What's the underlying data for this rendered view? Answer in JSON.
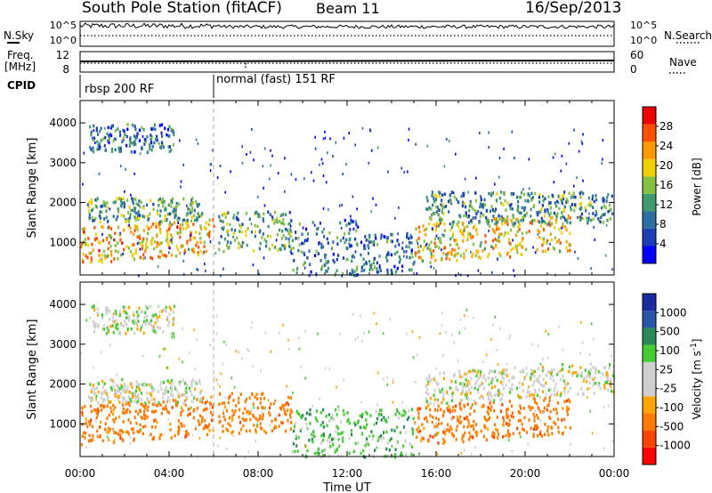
{
  "header": {
    "station": "South Pole Station (fitACF)",
    "beam": "Beam 11",
    "date": "16/Sep/2013"
  },
  "left_labels": {
    "nsky": "N.Sky",
    "freq_line1": "Freq.",
    "freq_line2": "[MHz]",
    "cpid": "CPID"
  },
  "right_labels": {
    "nsearch": "N.Search",
    "nave": "Nave"
  },
  "noise_panel": {
    "left_ticks": [
      "10^5",
      "10^0"
    ],
    "right_ticks": [
      "10^5",
      "10^0"
    ]
  },
  "freq_panel": {
    "left_ticks": [
      "12",
      "8"
    ],
    "right_ticks": [
      "60",
      "0"
    ]
  },
  "cpid_panel": {
    "segments": [
      {
        "label": "rbsp 200 RF",
        "start_hour": 0
      },
      {
        "label": "normal (fast) 151 RF",
        "start_hour": 6
      }
    ]
  },
  "x_axis": {
    "title": "Time UT",
    "ticks": [
      "00:00",
      "04:00",
      "08:00",
      "12:00",
      "16:00",
      "20:00",
      "00:00"
    ]
  },
  "chart_data": [
    {
      "type": "heatmap",
      "name": "power",
      "ylabel": "Slant Range [km]",
      "yticks": [
        "1000",
        "2000",
        "3000",
        "4000"
      ],
      "xlim_hours": [
        0,
        24
      ],
      "ylim_km": [
        180,
        4560
      ],
      "colorbar": {
        "label": "Power [dB]",
        "ticks": [
          "28",
          "24",
          "20",
          "16",
          "12",
          "8",
          "4"
        ],
        "colors": [
          "#0000ff",
          "#1c3fb8",
          "#2b6fa3",
          "#3e9b6e",
          "#86c040",
          "#f0d000",
          "#ff9a00",
          "#ff5000",
          "#ee0000"
        ]
      },
      "bands": [
        {
          "t0": 0.0,
          "t1": 6.0,
          "r0": 500,
          "r1": 1400,
          "level": 0.6
        },
        {
          "t0": 0.3,
          "t1": 5.5,
          "r0": 1550,
          "r1": 2150,
          "level": 0.3
        },
        {
          "t0": 0.4,
          "t1": 4.2,
          "r0": 3300,
          "r1": 4000,
          "level": 0.15
        },
        {
          "t0": 6.2,
          "t1": 9.5,
          "r0": 800,
          "r1": 1800,
          "level": 0.3
        },
        {
          "t0": 9.5,
          "t1": 12.5,
          "r0": 200,
          "r1": 1600,
          "level": 0.15
        },
        {
          "t0": 12.5,
          "t1": 15.0,
          "r0": 200,
          "r1": 1200,
          "level": 0.15
        },
        {
          "t0": 15.0,
          "t1": 22.0,
          "r0": 500,
          "r1": 1500,
          "level": 0.55
        },
        {
          "t0": 15.5,
          "t1": 24.0,
          "r0": 1500,
          "r1": 2300,
          "level": 0.25
        }
      ]
    },
    {
      "type": "heatmap",
      "name": "velocity",
      "ylabel": "Slant Range [km]",
      "yticks": [
        "1000",
        "2000",
        "3000",
        "4000"
      ],
      "xlim_hours": [
        0,
        24
      ],
      "ylim_km": [
        180,
        4560
      ],
      "colorbar": {
        "label": "Velocity [m s^-1]",
        "ticks": [
          "1000",
          "500",
          "100",
          "25",
          "-25",
          "-100",
          "-500",
          "-1000"
        ],
        "colors": [
          "#ff0000",
          "#ff4500",
          "#ff7a00",
          "#ffa500",
          "#cfcfcf",
          "#cfcfcf",
          "#44cc33",
          "#2a8a55",
          "#2a55a8",
          "#1a2aa0"
        ]
      },
      "bands": [
        {
          "t0": 0.0,
          "t1": 6.0,
          "r0": 500,
          "r1": 1500,
          "level": -0.6
        },
        {
          "t0": 0.3,
          "t1": 5.5,
          "r0": 1550,
          "r1": 2150,
          "level": 0.0
        },
        {
          "t0": 0.4,
          "t1": 4.2,
          "r0": 3300,
          "r1": 4000,
          "level": 0.0
        },
        {
          "t0": 6.2,
          "t1": 9.5,
          "r0": 800,
          "r1": 1800,
          "level": -0.5
        },
        {
          "t0": 9.5,
          "t1": 15.0,
          "r0": 200,
          "r1": 1400,
          "level": 0.2
        },
        {
          "t0": 15.0,
          "t1": 22.0,
          "r0": 500,
          "r1": 1500,
          "level": -0.6
        },
        {
          "t0": 15.5,
          "t1": 24.0,
          "r0": 1500,
          "r1": 2300,
          "level": 0.0
        }
      ]
    }
  ]
}
